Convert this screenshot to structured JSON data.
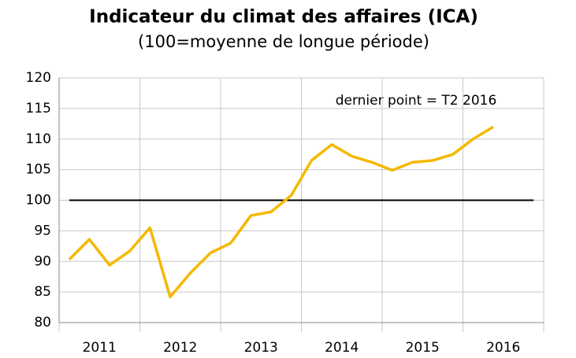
{
  "chart_data": {
    "type": "line",
    "title": "Indicateur du climat des affaires (ICA)",
    "subtitle": "(100=moyenne de longue période)",
    "annotation": "dernier point  = T2  2016",
    "year_labels": [
      "2011",
      "2012",
      "2013",
      "2014",
      "2015",
      "2016"
    ],
    "categories": [
      null,
      null,
      null,
      null,
      null,
      null,
      null,
      null,
      null,
      null,
      null,
      null,
      null,
      null,
      null,
      null,
      null,
      null,
      null,
      null,
      null,
      null
    ],
    "series": [
      {
        "name": "ICA",
        "color": "#f5b800",
        "values": [
          90.3,
          93.6,
          89.4,
          91.7,
          95.5,
          84.2,
          88.1,
          91.4,
          93.0,
          97.5,
          98.1,
          100.8,
          106.5,
          109.1,
          107.2,
          106.2,
          104.9,
          106.2,
          106.5,
          107.5,
          110.0,
          112.0
        ]
      }
    ],
    "reference_line": 100,
    "ylim": [
      80,
      120
    ],
    "yticks": [
      80,
      85,
      90,
      95,
      100,
      105,
      110,
      115,
      120
    ],
    "grid": true
  }
}
